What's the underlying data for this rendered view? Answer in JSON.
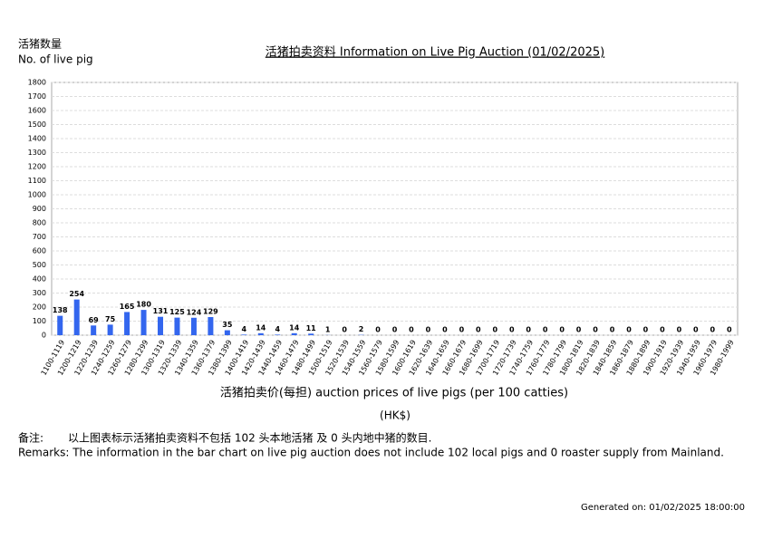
{
  "chart_data": {
    "type": "bar",
    "title": "活猪拍卖资料 Information on Live Pig Auction (01/02/2025)",
    "y_label_zh": "活猪数量",
    "y_label_en": "No. of live pig",
    "x_label": "活猪拍卖价(每担) auction prices of live pigs (per 100 catties)",
    "x_unit": "(HK$)",
    "remarks_zh_head": "备注:",
    "remarks_zh": "以上图表标示活猪拍卖资料不包括 102 头本地活猪 及 0 头内地中猪的数目.",
    "remarks_en": "Remarks: The information in the bar chart on live pig auction does not include 102 local pigs and 0 roaster supply from Mainland.",
    "generated": "Generated on: 01/02/2025 18:00:00",
    "categories": [
      "1100-1119",
      "1200-1219",
      "1220-1239",
      "1240-1259",
      "1260-1279",
      "1280-1299",
      "1300-1319",
      "1320-1339",
      "1340-1359",
      "1360-1379",
      "1380-1399",
      "1400-1419",
      "1420-1439",
      "1440-1459",
      "1460-1479",
      "1480-1499",
      "1500-1519",
      "1520-1539",
      "1540-1559",
      "1560-1579",
      "1580-1599",
      "1600-1619",
      "1620-1639",
      "1640-1659",
      "1660-1679",
      "1680-1699",
      "1700-1719",
      "1720-1739",
      "1740-1759",
      "1760-1779",
      "1780-1799",
      "1800-1819",
      "1820-1839",
      "1840-1859",
      "1860-1879",
      "1880-1899",
      "1900-1919",
      "1920-1939",
      "1940-1959",
      "1960-1979",
      "1980-1999"
    ],
    "values": [
      138,
      254,
      69,
      75,
      165,
      180,
      131,
      125,
      124,
      129,
      35,
      4,
      14,
      4,
      14,
      11,
      1,
      0,
      2,
      0,
      0,
      0,
      0,
      0,
      0,
      0,
      0,
      0,
      0,
      0,
      0,
      0,
      0,
      0,
      0,
      0,
      0,
      0,
      0,
      0,
      0
    ],
    "color": "#3366ee",
    "ylim": [
      0,
      1800
    ],
    "yticks": [
      0,
      100,
      200,
      300,
      400,
      500,
      600,
      700,
      800,
      900,
      1000,
      1100,
      1200,
      1300,
      1400,
      1500,
      1600,
      1700,
      1800
    ],
    "grid": true
  }
}
